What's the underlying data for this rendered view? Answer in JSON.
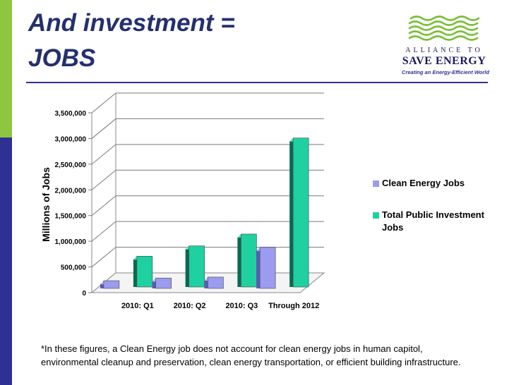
{
  "slide": {
    "title_line1": "And investment =",
    "title_line2": "JOBS",
    "footnote": "*In these figures, a Clean Energy job does not account for clean energy jobs in human capitol, environmental cleanup and preservation, clean energy transportation, or efficient building infrastructure."
  },
  "logo": {
    "line1": "ALLIANCE TO",
    "line2": "SAVE ENERGY",
    "tagline": "Creating an Energy-Efficient World"
  },
  "colors": {
    "accent_green": "#8dc63f",
    "accent_navy": "#2e3192",
    "title": "#24306d",
    "clean_energy": "#9b9bf0",
    "total_public": "#1fd0a0"
  },
  "chart_data": {
    "type": "bar",
    "categories": [
      "2010: Q1",
      "2010: Q2",
      "2010: Q3",
      "Through 2012"
    ],
    "series": [
      {
        "name": "Clean Energy Jobs",
        "values": [
          150000,
          200000,
          220000,
          800000
        ]
      },
      {
        "name": "Total Public Investment Jobs",
        "values": [
          600000,
          800000,
          1030000,
          2900000
        ]
      }
    ],
    "ylabel": "Millions of Jobs",
    "xlabel": "",
    "ylim": [
      0,
      3500000
    ],
    "y_ticks": [
      0,
      500000,
      1000000,
      1500000,
      2000000,
      2500000,
      3000000,
      3500000
    ],
    "y_tick_labels": [
      "0",
      "500,000",
      "1,000,000",
      "1,500,000",
      "2,000,000",
      "2,500,000",
      "3,000,000",
      "3,500,000"
    ],
    "grid": true,
    "legend_position": "right",
    "style": "3d-column"
  }
}
